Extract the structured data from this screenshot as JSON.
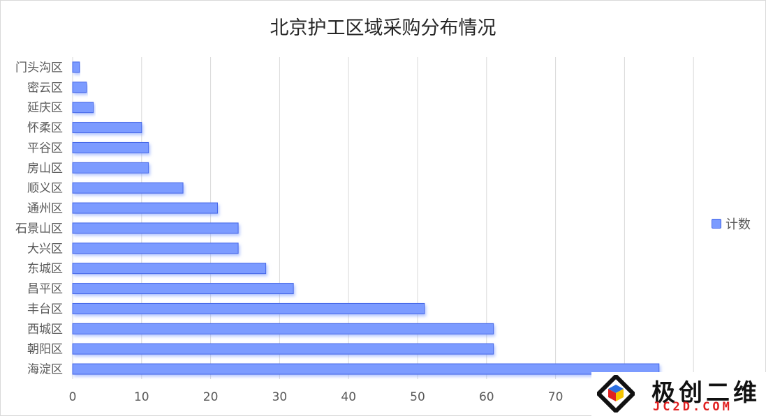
{
  "chart_data": {
    "type": "bar",
    "orientation": "horizontal",
    "title": "北京护工区域采购分布情况",
    "categories": [
      "门头沟区",
      "密云区",
      "延庆区",
      "怀柔区",
      "平谷区",
      "房山区",
      "顺义区",
      "通州区",
      "石景山区",
      "大兴区",
      "东城区",
      "昌平区",
      "丰台区",
      "西城区",
      "朝阳区",
      "海淀区"
    ],
    "series": [
      {
        "name": "计数",
        "values": [
          1,
          2,
          3,
          10,
          11,
          11,
          16,
          21,
          24,
          24,
          28,
          32,
          51,
          61,
          61,
          85
        ]
      }
    ],
    "xlim": [
      0,
      90
    ],
    "xticks": [
      0,
      10,
      20,
      30,
      40,
      50,
      60,
      70
    ],
    "grid": "vertical",
    "legend_position": "right",
    "bar_color": "#7b9bff",
    "bar_edge_color": "#4466e8"
  },
  "watermark": {
    "text": "极创二维",
    "subtext": "JC2D.COM"
  }
}
